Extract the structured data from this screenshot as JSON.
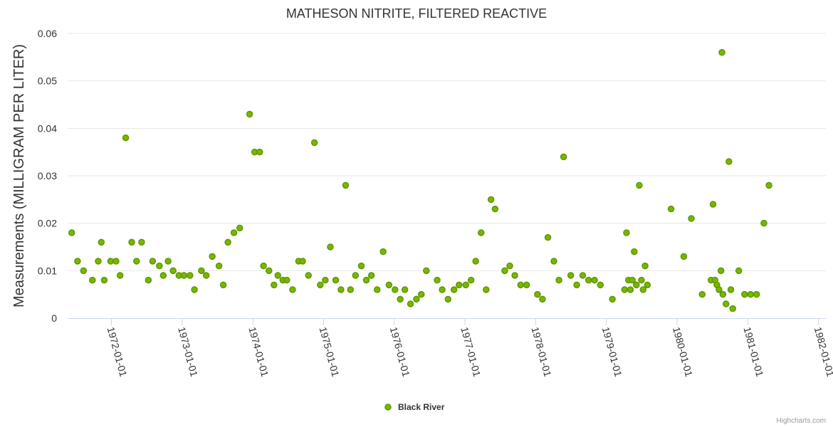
{
  "chart_data": {
    "type": "scatter",
    "title": "MATHESON NITRITE, FILTERED REACTIVE",
    "ylabel": "Measurements (MILLIGRAM PER LITER)",
    "xlabel": "",
    "ylim": [
      0,
      0.06
    ],
    "yticks": [
      "0",
      "0.01",
      "0.02",
      "0.03",
      "0.04",
      "0.05",
      "0.06"
    ],
    "xlim": [
      "1971-05-20",
      "1982-02-08"
    ],
    "xticks": [
      "1972-01-01",
      "1973-01-01",
      "1974-01-01",
      "1975-01-01",
      "1976-01-01",
      "1977-01-01",
      "1978-01-01",
      "1979-01-01",
      "1980-01-01",
      "1981-01-01",
      "1982-01-01"
    ],
    "grid": true,
    "legend_position": "bottom-center",
    "marker_color": "#5b9a00",
    "marker_fill": "#7cb400",
    "series": [
      {
        "name": "Black River",
        "points": [
          [
            "1971-06-10",
            0.018
          ],
          [
            "1971-07-10",
            0.012
          ],
          [
            "1971-08-10",
            0.01
          ],
          [
            "1971-09-25",
            0.008
          ],
          [
            "1971-10-25",
            0.012
          ],
          [
            "1971-11-10",
            0.016
          ],
          [
            "1971-11-25",
            0.008
          ],
          [
            "1971-12-28",
            0.012
          ],
          [
            "1972-01-25",
            0.012
          ],
          [
            "1972-02-15",
            0.009
          ],
          [
            "1972-03-15",
            0.038
          ],
          [
            "1972-04-15",
            0.016
          ],
          [
            "1972-05-10",
            0.012
          ],
          [
            "1972-06-05",
            0.016
          ],
          [
            "1972-07-10",
            0.008
          ],
          [
            "1972-08-01",
            0.012
          ],
          [
            "1972-09-05",
            0.011
          ],
          [
            "1972-09-25",
            0.009
          ],
          [
            "1972-10-20",
            0.012
          ],
          [
            "1972-11-15",
            0.01
          ],
          [
            "1972-12-15",
            0.009
          ],
          [
            "1973-01-10",
            0.009
          ],
          [
            "1973-02-10",
            0.009
          ],
          [
            "1973-03-05",
            0.006
          ],
          [
            "1973-04-10",
            0.01
          ],
          [
            "1973-05-05",
            0.009
          ],
          [
            "1973-06-05",
            0.013
          ],
          [
            "1973-07-10",
            0.011
          ],
          [
            "1973-08-01",
            0.007
          ],
          [
            "1973-08-25",
            0.016
          ],
          [
            "1973-09-25",
            0.018
          ],
          [
            "1973-10-25",
            0.019
          ],
          [
            "1973-12-15",
            0.043
          ],
          [
            "1974-01-10",
            0.035
          ],
          [
            "1974-02-05",
            0.035
          ],
          [
            "1974-02-25",
            0.011
          ],
          [
            "1974-03-25",
            0.01
          ],
          [
            "1974-04-20",
            0.007
          ],
          [
            "1974-05-10",
            0.009
          ],
          [
            "1974-06-05",
            0.008
          ],
          [
            "1974-06-25",
            0.008
          ],
          [
            "1974-07-25",
            0.006
          ],
          [
            "1974-08-25",
            0.012
          ],
          [
            "1974-09-15",
            0.012
          ],
          [
            "1974-10-15",
            0.009
          ],
          [
            "1974-11-15",
            0.037
          ],
          [
            "1974-12-15",
            0.007
          ],
          [
            "1975-01-10",
            0.008
          ],
          [
            "1975-02-05",
            0.015
          ],
          [
            "1975-03-05",
            0.008
          ],
          [
            "1975-04-01",
            0.006
          ],
          [
            "1975-04-25",
            0.028
          ],
          [
            "1975-05-20",
            0.006
          ],
          [
            "1975-06-15",
            0.009
          ],
          [
            "1975-07-15",
            0.011
          ],
          [
            "1975-08-10",
            0.008
          ],
          [
            "1975-09-05",
            0.009
          ],
          [
            "1975-10-05",
            0.006
          ],
          [
            "1975-11-05",
            0.014
          ],
          [
            "1975-12-05",
            0.007
          ],
          [
            "1976-01-05",
            0.006
          ],
          [
            "1976-02-01",
            0.004
          ],
          [
            "1976-02-25",
            0.006
          ],
          [
            "1976-03-25",
            0.003
          ],
          [
            "1976-04-25",
            0.004
          ],
          [
            "1976-05-20",
            0.005
          ],
          [
            "1976-06-15",
            0.01
          ],
          [
            "1976-08-10",
            0.008
          ],
          [
            "1976-09-05",
            0.006
          ],
          [
            "1976-10-05",
            0.004
          ],
          [
            "1976-11-05",
            0.006
          ],
          [
            "1976-12-01",
            0.007
          ],
          [
            "1977-01-05",
            0.007
          ],
          [
            "1977-02-01",
            0.008
          ],
          [
            "1977-02-25",
            0.012
          ],
          [
            "1977-03-25",
            0.018
          ],
          [
            "1977-04-20",
            0.006
          ],
          [
            "1977-05-15",
            0.025
          ],
          [
            "1977-06-05",
            0.023
          ],
          [
            "1977-07-25",
            0.01
          ],
          [
            "1977-08-20",
            0.011
          ],
          [
            "1977-09-15",
            0.009
          ],
          [
            "1977-10-15",
            0.007
          ],
          [
            "1977-11-15",
            0.007
          ],
          [
            "1978-01-10",
            0.005
          ],
          [
            "1978-02-05",
            0.004
          ],
          [
            "1978-03-05",
            0.017
          ],
          [
            "1978-04-05",
            0.012
          ],
          [
            "1978-05-01",
            0.008
          ],
          [
            "1978-05-25",
            0.034
          ],
          [
            "1978-07-01",
            0.009
          ],
          [
            "1978-08-01",
            0.007
          ],
          [
            "1978-09-01",
            0.009
          ],
          [
            "1978-10-01",
            0.008
          ],
          [
            "1978-11-01",
            0.008
          ],
          [
            "1978-12-01",
            0.007
          ],
          [
            "1979-02-01",
            0.004
          ],
          [
            "1979-04-05",
            0.006
          ],
          [
            "1979-04-15",
            0.018
          ],
          [
            "1979-04-25",
            0.008
          ],
          [
            "1979-05-05",
            0.006
          ],
          [
            "1979-05-15",
            0.008
          ],
          [
            "1979-05-25",
            0.014
          ],
          [
            "1979-06-05",
            0.007
          ],
          [
            "1979-06-20",
            0.028
          ],
          [
            "1979-07-01",
            0.008
          ],
          [
            "1979-07-10",
            0.006
          ],
          [
            "1979-07-20",
            0.011
          ],
          [
            "1979-08-01",
            0.007
          ],
          [
            "1979-12-01",
            0.023
          ],
          [
            "1980-02-05",
            0.013
          ],
          [
            "1980-03-15",
            0.021
          ],
          [
            "1980-05-10",
            0.005
          ],
          [
            "1980-06-25",
            0.008
          ],
          [
            "1980-07-05",
            0.024
          ],
          [
            "1980-07-15",
            0.008
          ],
          [
            "1980-07-25",
            0.007
          ],
          [
            "1980-08-05",
            0.006
          ],
          [
            "1980-08-15",
            0.01
          ],
          [
            "1980-08-20",
            0.056
          ],
          [
            "1980-08-25",
            0.005
          ],
          [
            "1980-09-10",
            0.003
          ],
          [
            "1980-09-25",
            0.033
          ],
          [
            "1980-10-05",
            0.006
          ],
          [
            "1980-10-15",
            0.002
          ],
          [
            "1980-11-15",
            0.01
          ],
          [
            "1980-12-15",
            0.005
          ],
          [
            "1981-01-15",
            0.005
          ],
          [
            "1981-02-15",
            0.005
          ],
          [
            "1981-03-25",
            0.02
          ],
          [
            "1981-04-20",
            0.028
          ]
        ]
      }
    ],
    "credits": "Highcharts.com"
  }
}
